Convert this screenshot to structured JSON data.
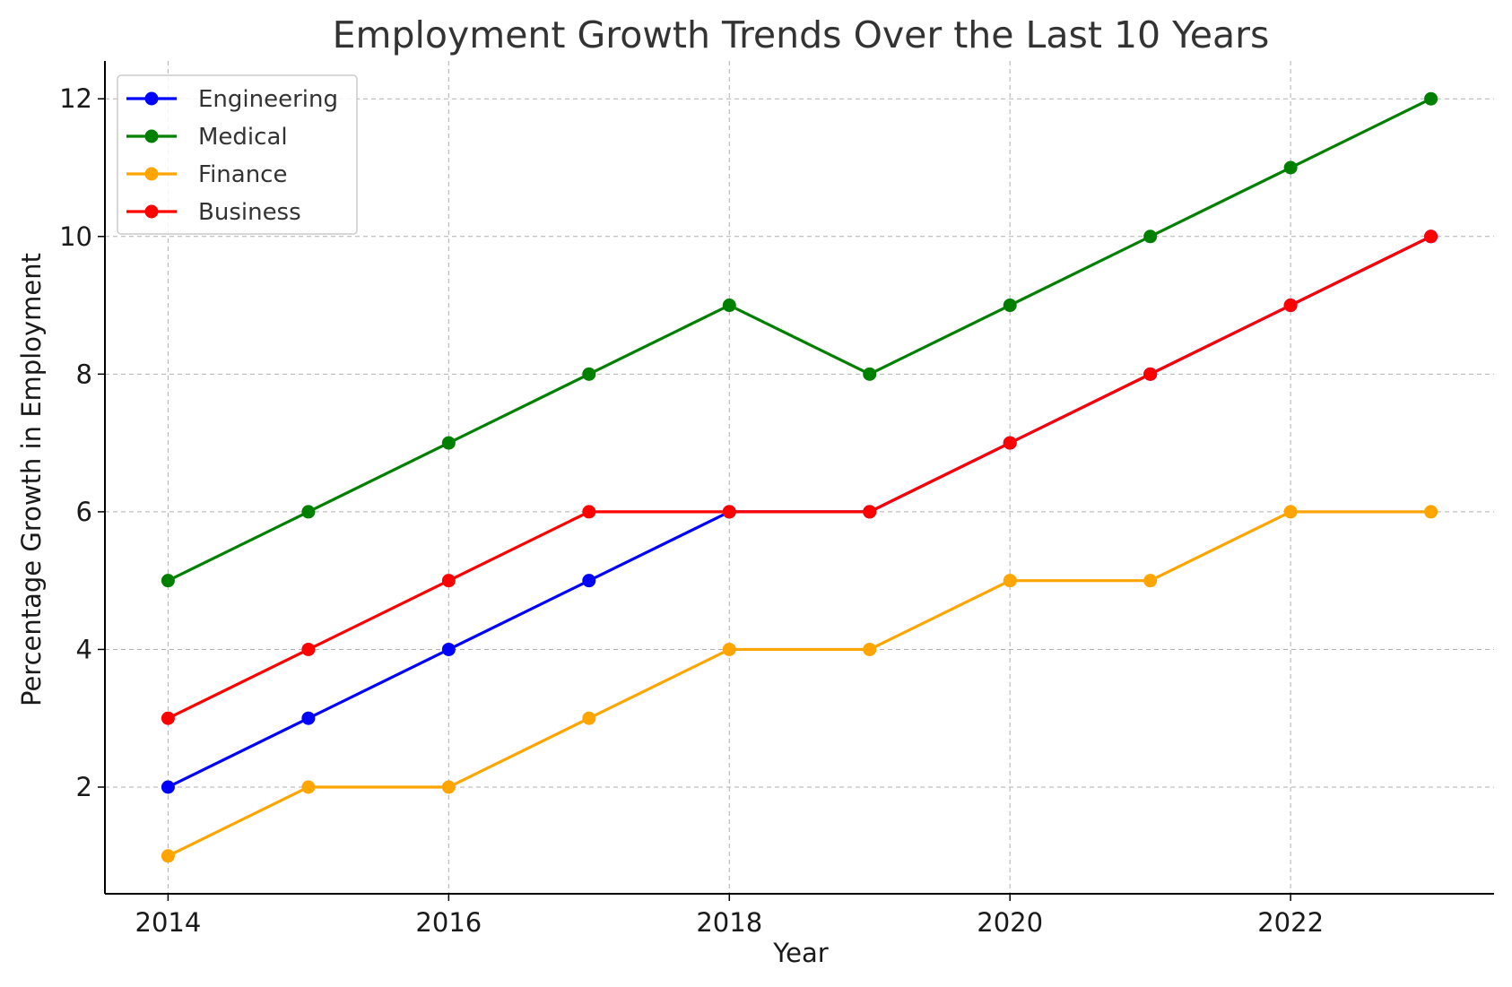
{
  "chart_data": {
    "type": "line",
    "title": "Employment Growth Trends Over the Last 10 Years",
    "xlabel": "Year",
    "ylabel": "Percentage Growth in Employment",
    "x": [
      2014,
      2015,
      2016,
      2017,
      2018,
      2019,
      2020,
      2021,
      2022,
      2023
    ],
    "xlim": [
      2013.55,
      2023.45
    ],
    "ylim": [
      0.45,
      12.55
    ],
    "xticks": [
      2014,
      2016,
      2018,
      2020,
      2022
    ],
    "xtick_labels": [
      "2014",
      "2016",
      "2018",
      "2020",
      "2022"
    ],
    "yticks": [
      2,
      4,
      6,
      8,
      10,
      12
    ],
    "ytick_labels": [
      "2",
      "4",
      "6",
      "8",
      "10",
      "12"
    ],
    "grid": true,
    "legend_position": "top-left",
    "series": [
      {
        "name": "Engineering",
        "color": "#0000ff",
        "values": [
          2,
          3,
          4,
          5,
          6,
          6,
          7,
          8,
          9,
          10
        ]
      },
      {
        "name": "Medical",
        "color": "#008000",
        "values": [
          5,
          6,
          7,
          8,
          9,
          8,
          9,
          10,
          11,
          12
        ]
      },
      {
        "name": "Finance",
        "color": "#ffa500",
        "values": [
          1,
          2,
          2,
          3,
          4,
          4,
          5,
          5,
          6,
          6
        ]
      },
      {
        "name": "Business",
        "color": "#ff0000",
        "values": [
          3,
          4,
          5,
          6,
          6,
          6,
          7,
          8,
          9,
          10
        ]
      }
    ]
  }
}
